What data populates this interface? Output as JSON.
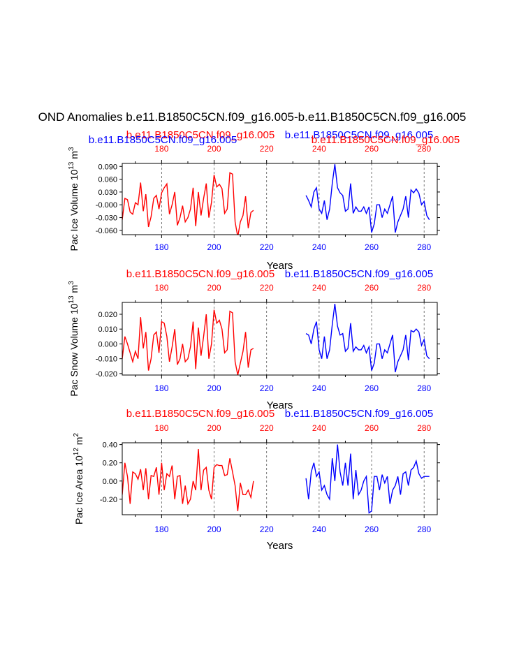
{
  "figure": {
    "title": "OND Anomalies b.e11.B1850C5CN.f09_g16.005-b.e11.B1850C5CN.f09_g16.005",
    "xlabel": "Years",
    "colors": {
      "case1": "#ff0000",
      "case2": "#0000ff",
      "axis": "#000000",
      "grid": "#555555"
    }
  },
  "chart_data": [
    {
      "type": "line",
      "ylabel_main": "Pac Ice Volume 10",
      "ylabel_exp": "13",
      "ylabel_unit": " m",
      "ylabel_unit_exp": "3",
      "xlabel": "Years",
      "xlim": [
        165,
        285
      ],
      "ylim": [
        -0.07,
        0.097
      ],
      "yticks": [
        -0.06,
        -0.03,
        0.0,
        0.03,
        0.06,
        0.09
      ],
      "ytick_labels": [
        "-0.060",
        "-0.030",
        "-0.000",
        "0.030",
        "0.060",
        "0.090"
      ],
      "x_ticks": [
        180,
        200,
        220,
        240,
        260,
        280
      ],
      "x_tick_labels": [
        "180",
        "200",
        "220",
        "240",
        "260",
        "280"
      ],
      "gridlines_x": [
        180,
        200,
        220,
        240,
        260,
        280
      ],
      "top_labels": [
        {
          "text": "b.e11.B1850C5CN.f09_g16.005",
          "color": "#ff0000",
          "pos": "left"
        },
        {
          "text": "b.e11.B1850C5CN.f09_g16.005",
          "color": "#0000ff",
          "pos": "left-lower"
        },
        {
          "text": "b.e11.B1850C5CN.f09_g16.005",
          "color": "#0000ff",
          "pos": "right"
        },
        {
          "text": "b.e11.B1850C5CN.f09_g16.005",
          "color": "#ff0000",
          "pos": "right-lower"
        }
      ],
      "series": [
        {
          "color": "#ff0000",
          "x_start": 165,
          "values": [
            -0.035,
            0.015,
            0.012,
            -0.017,
            -0.022,
            0.005,
            0.0,
            0.052,
            -0.015,
            0.025,
            -0.052,
            -0.028,
            0.015,
            0.022,
            -0.01,
            0.028,
            0.04,
            0.049,
            -0.022,
            0.0,
            0.03,
            -0.048,
            -0.03,
            -0.002,
            -0.04,
            -0.03,
            -0.01,
            0.04,
            -0.05,
            0.03,
            -0.025,
            0.015,
            0.05,
            -0.03,
            0.006,
            0.07,
            0.042,
            0.048,
            0.038,
            -0.02,
            -0.01,
            0.075,
            0.072,
            -0.04,
            -0.075,
            -0.04,
            -0.025,
            0.02,
            -0.055,
            -0.018,
            -0.013
          ]
        },
        {
          "color": "#0000ff",
          "x_start": 235,
          "values": [
            0.022,
            0.01,
            -0.005,
            0.03,
            0.04,
            -0.01,
            -0.02,
            0.01,
            -0.035,
            -0.01,
            0.05,
            0.095,
            0.04,
            0.028,
            0.022,
            -0.015,
            -0.01,
            0.05,
            -0.02,
            -0.005,
            -0.015,
            -0.015,
            -0.005,
            -0.02,
            -0.005,
            -0.065,
            -0.045,
            0.0,
            0.0,
            -0.03,
            -0.01,
            -0.02,
            0.0,
            0.02,
            -0.065,
            -0.04,
            -0.025,
            -0.01,
            0.02,
            -0.03,
            0.035,
            0.028,
            0.037,
            0.027,
            0.0,
            0.008,
            -0.025,
            -0.035
          ]
        }
      ]
    },
    {
      "type": "line",
      "ylabel_main": "Pac Snow Volume 10",
      "ylabel_exp": "13",
      "ylabel_unit": " m",
      "ylabel_unit_exp": "3",
      "xlabel": "Years",
      "xlim": [
        165,
        285
      ],
      "ylim": [
        -0.021,
        0.028
      ],
      "yticks": [
        -0.02,
        -0.01,
        0.0,
        0.01,
        0.02
      ],
      "ytick_labels": [
        "-0.020",
        "-0.010",
        "0.000",
        "0.010",
        "0.020"
      ],
      "x_ticks": [
        180,
        200,
        220,
        240,
        260,
        280
      ],
      "x_tick_labels": [
        "180",
        "200",
        "220",
        "240",
        "260",
        "280"
      ],
      "gridlines_x": [
        180,
        200,
        220,
        240,
        260,
        280
      ],
      "top_labels": [
        {
          "text": "b.e11.B1850C5CN.f09_g16.005",
          "color": "#ff0000",
          "pos": "left"
        },
        {
          "text": "b.e11.B1850C5CN.f09_g16.005",
          "color": "#0000ff",
          "pos": "right"
        }
      ],
      "series": [
        {
          "color": "#ff0000",
          "x_start": 165,
          "values": [
            -0.01,
            0.005,
            0.0,
            -0.006,
            -0.012,
            -0.005,
            -0.01,
            0.018,
            -0.003,
            0.008,
            -0.018,
            -0.01,
            0.006,
            0.008,
            -0.006,
            0.015,
            0.014,
            0.005,
            -0.012,
            -0.002,
            0.01,
            -0.014,
            -0.01,
            0.0,
            -0.012,
            -0.01,
            -0.002,
            0.015,
            -0.017,
            0.011,
            -0.008,
            0.005,
            0.02,
            -0.01,
            0.0,
            0.023,
            0.014,
            0.016,
            0.01,
            -0.006,
            -0.004,
            0.022,
            0.021,
            -0.012,
            -0.021,
            -0.013,
            -0.005,
            0.008,
            -0.016,
            -0.004,
            -0.003
          ]
        },
        {
          "color": "#0000ff",
          "x_start": 235,
          "values": [
            0.007,
            0.006,
            0.0,
            0.01,
            0.015,
            -0.004,
            -0.01,
            0.005,
            -0.01,
            -0.004,
            0.013,
            0.027,
            0.012,
            0.006,
            0.007,
            -0.005,
            -0.003,
            0.014,
            -0.005,
            -0.002,
            -0.004,
            -0.004,
            -0.001,
            -0.006,
            -0.002,
            -0.018,
            -0.013,
            0.0,
            0.0,
            -0.01,
            -0.004,
            -0.006,
            0.0,
            0.006,
            -0.019,
            -0.012,
            -0.008,
            -0.004,
            0.006,
            -0.011,
            0.009,
            0.008,
            0.01,
            0.008,
            -0.001,
            0.003,
            -0.008,
            -0.01
          ]
        }
      ]
    },
    {
      "type": "line",
      "ylabel_main": "Pac Ice Area 10",
      "ylabel_exp": "12",
      "ylabel_unit": " m",
      "ylabel_unit_exp": "2",
      "xlabel": "Years",
      "xlim": [
        165,
        285
      ],
      "ylim": [
        -0.37,
        0.42
      ],
      "yticks": [
        -0.2,
        0.0,
        0.2,
        0.4
      ],
      "ytick_labels": [
        "-0.20",
        "0.00",
        "0.20",
        "0.40"
      ],
      "x_ticks": [
        180,
        200,
        220,
        240,
        260,
        280
      ],
      "x_tick_labels": [
        "180",
        "200",
        "220",
        "240",
        "260",
        "280"
      ],
      "gridlines_x": [
        180,
        200,
        220,
        240,
        260,
        280
      ],
      "top_labels": [
        {
          "text": "b.e11.B1850C5CN.f09_g16.005",
          "color": "#ff0000",
          "pos": "left"
        },
        {
          "text": "b.e11.B1850C5CN.f09_g16.005",
          "color": "#0000ff",
          "pos": "right"
        }
      ],
      "series": [
        {
          "color": "#ff0000",
          "x_start": 165,
          "values": [
            -0.15,
            0.2,
            0.05,
            -0.25,
            0.1,
            0.08,
            0.02,
            0.13,
            -0.1,
            0.14,
            -0.2,
            0.06,
            0.05,
            0.15,
            -0.15,
            0.2,
            -0.1,
            0.08,
            0.05,
            0.17,
            -0.2,
            0.05,
            0.06,
            -0.25,
            -0.05,
            -0.25,
            -0.2,
            0.0,
            -0.1,
            0.35,
            -0.1,
            0.12,
            0.15,
            -0.1,
            -0.2,
            0.15,
            0.18,
            0.17,
            0.17,
            0.06,
            0.07,
            0.25,
            0.1,
            -0.05,
            -0.33,
            -0.02,
            -0.15,
            -0.15,
            -0.1,
            -0.18,
            0.0
          ]
        },
        {
          "color": "#0000ff",
          "x_start": 235,
          "values": [
            0.03,
            -0.2,
            0.1,
            0.2,
            0.05,
            0.1,
            -0.1,
            -0.05,
            -0.15,
            -0.2,
            0.25,
            0.0,
            0.4,
            0.1,
            -0.05,
            0.2,
            -0.05,
            0.3,
            -0.2,
            0.12,
            -0.15,
            -0.1,
            0.0,
            0.05,
            -0.35,
            -0.33,
            0.05,
            0.05,
            -0.1,
            0.07,
            -0.02,
            0.05,
            -0.25,
            -0.1,
            -0.05,
            0.05,
            -0.15,
            0.08,
            0.1,
            -0.05,
            0.12,
            0.15,
            0.22,
            0.08,
            0.03,
            0.05,
            0.05,
            0.05
          ]
        }
      ]
    }
  ]
}
